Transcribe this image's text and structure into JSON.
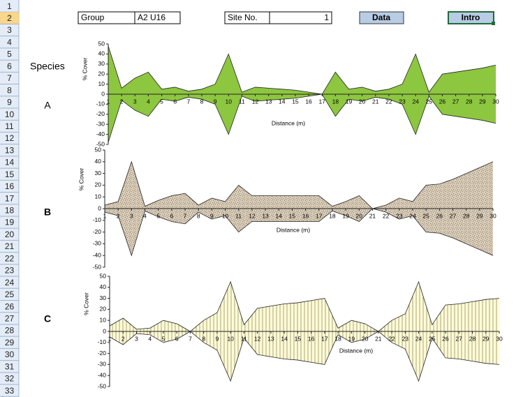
{
  "sheet": {
    "row_headers": [
      1,
      2,
      3,
      4,
      5,
      6,
      7,
      8,
      9,
      10,
      11,
      12,
      13,
      14,
      15,
      16,
      17,
      18,
      19,
      20,
      21,
      22,
      23,
      24,
      25,
      26,
      27,
      28,
      29,
      30,
      31,
      32,
      33
    ]
  },
  "header": {
    "group_label": "Group",
    "group_value": "A2 U16",
    "site_label": "Site No.",
    "site_value": 1,
    "data_button": "Data",
    "intro_button": "Intro"
  },
  "species_label": "Species",
  "chart_data": [
    {
      "type": "kite",
      "species": "A",
      "xlabel": "Distance (m)",
      "ylabel": "% Cover",
      "color": "#8dc63f",
      "pattern": "solid",
      "x": [
        1,
        2,
        3,
        4,
        5,
        6,
        7,
        8,
        9,
        10,
        11,
        12,
        13,
        14,
        15,
        16,
        17,
        18,
        19,
        20,
        21,
        22,
        23,
        24,
        25,
        26,
        27,
        28,
        29,
        30
      ],
      "values": [
        48,
        6,
        16,
        22,
        5,
        7,
        3,
        5,
        10,
        40,
        2,
        7,
        6,
        5,
        4,
        2,
        0,
        22,
        5,
        7,
        3,
        5,
        10,
        40,
        2,
        20,
        22,
        24,
        26,
        29
      ],
      "xlim": [
        1,
        30
      ],
      "ylim": [
        -50,
        50
      ],
      "yticks": [
        -50,
        -40,
        -30,
        -20,
        -10,
        0,
        10,
        20,
        30,
        40,
        50
      ]
    },
    {
      "type": "kite",
      "species": "B",
      "xlabel": "Distance (m)",
      "ylabel": "% Cover",
      "color": "#d8ccb8",
      "pattern": "speckle",
      "x": [
        1,
        2,
        3,
        4,
        5,
        6,
        7,
        8,
        9,
        10,
        11,
        12,
        13,
        14,
        15,
        16,
        17,
        18,
        19,
        20,
        21,
        22,
        23,
        24,
        25,
        26,
        27,
        28,
        29,
        30
      ],
      "values": [
        3,
        6,
        40,
        2,
        7,
        11,
        13,
        3,
        9,
        6,
        20,
        11,
        11,
        11,
        11,
        11,
        11,
        2,
        6,
        11,
        0,
        3,
        9,
        6,
        20,
        21,
        25,
        30,
        35,
        40
      ],
      "xlim": [
        1,
        30
      ],
      "ylim": [
        -50,
        50
      ],
      "yticks": [
        -50,
        -40,
        -30,
        -20,
        -10,
        0,
        10,
        20,
        30,
        40,
        50
      ]
    },
    {
      "type": "kite",
      "species": "C",
      "xlabel": "Distance (m)",
      "ylabel": "% Cover",
      "color": "#fdfbd8",
      "pattern": "stripes",
      "x": [
        1,
        2,
        3,
        4,
        5,
        6,
        7,
        8,
        9,
        10,
        11,
        12,
        13,
        14,
        15,
        16,
        17,
        18,
        19,
        20,
        21,
        22,
        23,
        24,
        25,
        26,
        27,
        28,
        29,
        30
      ],
      "values": [
        5,
        12,
        2,
        3,
        10,
        7,
        0,
        10,
        17,
        45,
        6,
        21,
        23,
        25,
        26,
        28,
        30,
        3,
        10,
        7,
        0,
        10,
        16,
        45,
        6,
        24,
        25,
        27,
        29,
        30
      ],
      "xlim": [
        1,
        30
      ],
      "ylim": [
        -50,
        50
      ],
      "yticks": [
        -50,
        -40,
        -30,
        -20,
        -10,
        0,
        10,
        20,
        30,
        40,
        50
      ]
    }
  ]
}
